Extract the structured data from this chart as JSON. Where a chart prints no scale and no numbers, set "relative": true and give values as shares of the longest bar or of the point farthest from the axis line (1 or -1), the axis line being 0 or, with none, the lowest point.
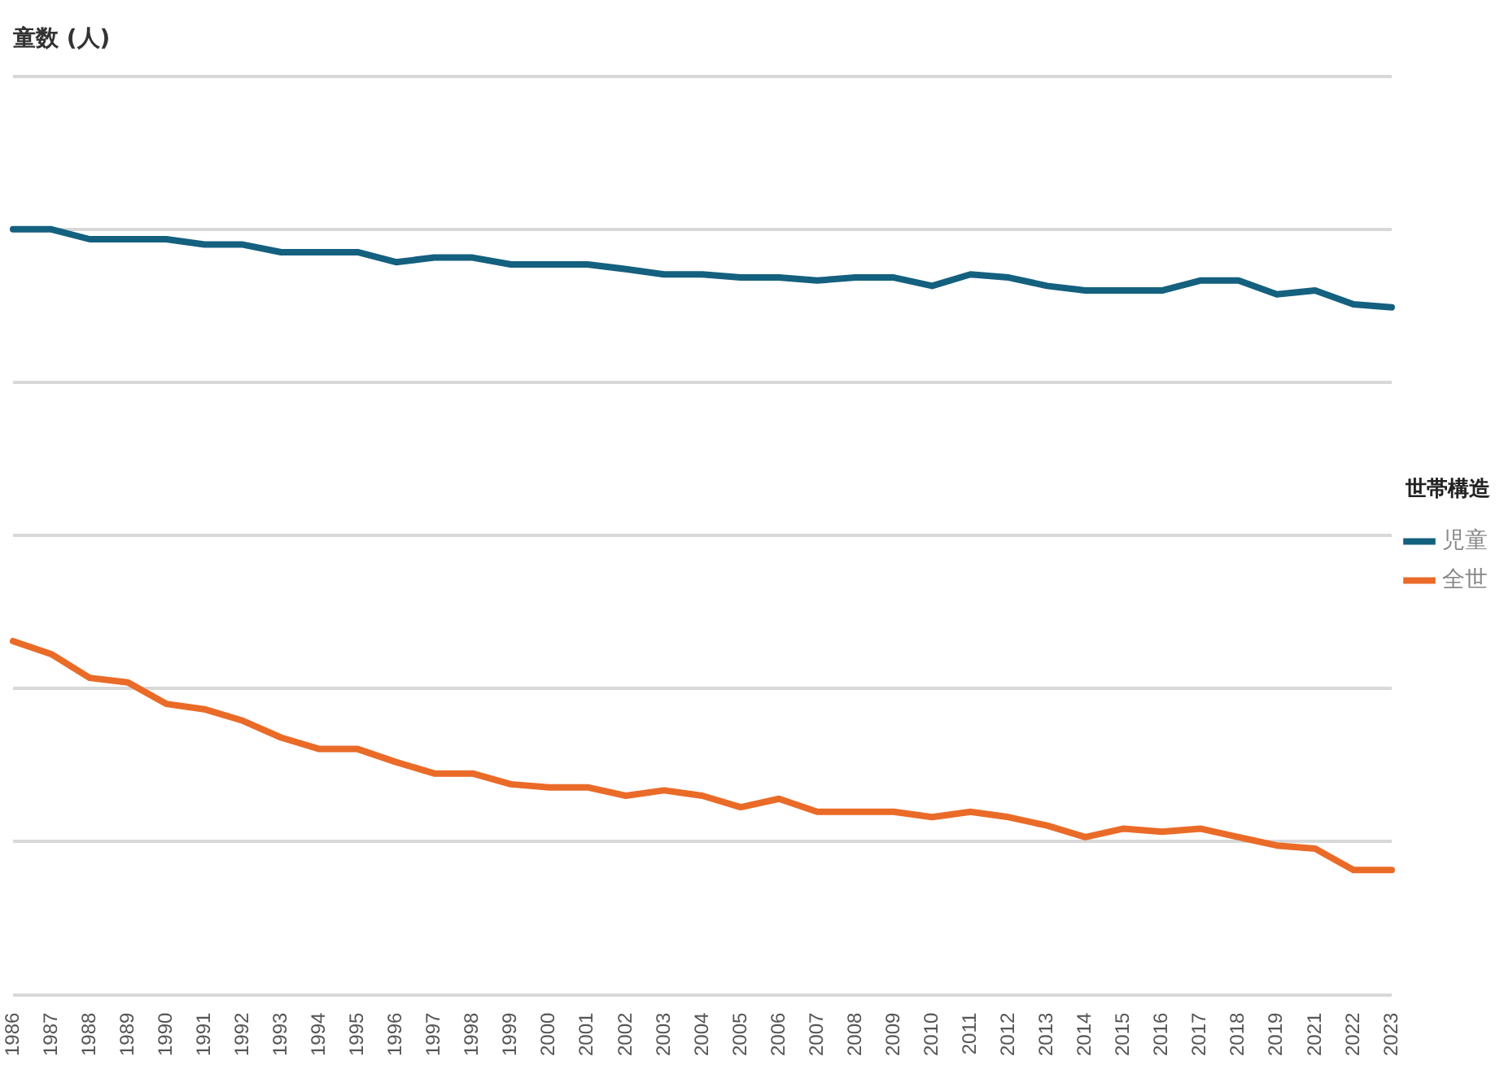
{
  "chart_data": {
    "type": "line",
    "title": "童数 (人)",
    "legend_title": "世帯構造",
    "legend": "right",
    "grid": "y",
    "relative": true,
    "marker": "none",
    "line_style": "solid",
    "categories": [
      "1986",
      "1987",
      "1988",
      "1989",
      "1990",
      "1991",
      "1992",
      "1993",
      "1994",
      "1995",
      "1996",
      "1997",
      "1998",
      "1999",
      "2000",
      "2001",
      "2002",
      "2003",
      "2004",
      "2005",
      "2006",
      "2007",
      "2008",
      "2009",
      "2010",
      "2011",
      "2012",
      "2013",
      "2014",
      "2015",
      "2016",
      "2017",
      "2018",
      "2019",
      "2021",
      "2022",
      "2023"
    ],
    "series": [
      {
        "name": "児童",
        "color": "#14607f",
        "values": [
          1.0,
          1.0,
          0.987,
          0.987,
          0.987,
          0.98,
          0.98,
          0.97,
          0.97,
          0.97,
          0.957,
          0.963,
          0.963,
          0.954,
          0.954,
          0.954,
          0.948,
          0.941,
          0.941,
          0.937,
          0.937,
          0.933,
          0.937,
          0.937,
          0.926,
          0.941,
          0.937,
          0.926,
          0.92,
          0.92,
          0.92,
          0.933,
          0.933,
          0.915,
          0.92,
          0.902,
          0.898
        ]
      },
      {
        "name": "全世",
        "color": "#ea6b28",
        "values": [
          0.462,
          0.445,
          0.414,
          0.408,
          0.38,
          0.373,
          0.358,
          0.336,
          0.321,
          0.321,
          0.304,
          0.289,
          0.289,
          0.275,
          0.271,
          0.271,
          0.26,
          0.267,
          0.26,
          0.245,
          0.256,
          0.239,
          0.239,
          0.239,
          0.232,
          0.239,
          0.232,
          0.221,
          0.206,
          0.217,
          0.213,
          0.217,
          0.206,
          0.195,
          0.191,
          0.163,
          0.163
        ]
      }
    ]
  }
}
